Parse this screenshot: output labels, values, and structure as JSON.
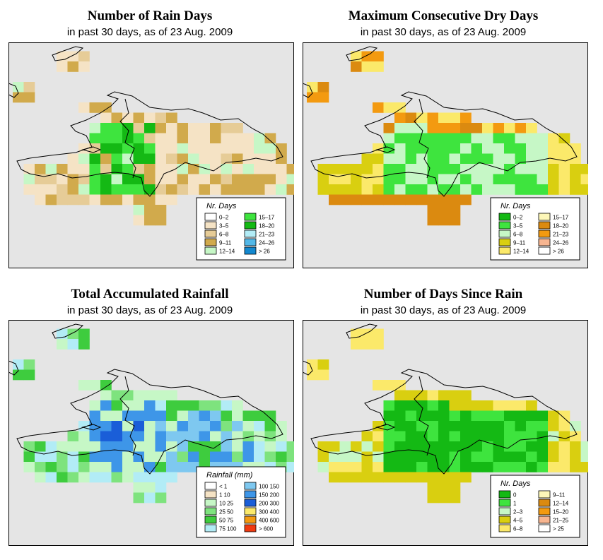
{
  "panels": [
    {
      "id": "rain_days",
      "title": "Number of Rain Days",
      "subtitle": "in past 30 days, as of  23 Aug. 2009",
      "legend": {
        "title": "Nr. Days",
        "items": [
          {
            "label": "0–2",
            "color": "#ffffff"
          },
          {
            "label": "3–5",
            "color": "#f5e3c5"
          },
          {
            "label": "6–8",
            "color": "#e6cc97"
          },
          {
            "label": "9–11",
            "color": "#d1aa4c"
          },
          {
            "label": "12–14",
            "color": "#c6f7c6"
          },
          {
            "label": "15–17",
            "color": "#3ee43e"
          },
          {
            "label": "18–20",
            "color": "#14b914"
          },
          {
            "label": "21–23",
            "color": "#b2ecf6"
          },
          {
            "label": "24–26",
            "color": "#52b8e8"
          },
          {
            "label": "> 26",
            "color": "#1388cf"
          }
        ]
      },
      "grid_values": [
        "........................",
        ".......11...............",
        "........................",
        "........................",
        "........................",
        "........................",
        "........................",
        "........................",
        "........................",
        "........................",
        "........................",
        "........................",
        "........................",
        "........................",
        "........................"
      ]
    },
    {
      "id": "max_dry",
      "title": "Maximum Consecutive Dry Days",
      "subtitle": "in past 30 days, as of  23 Aug. 2009",
      "legend": {
        "title": "Nr. Days",
        "items": [
          {
            "label": "0–2",
            "color": "#14b914"
          },
          {
            "label": "3–5",
            "color": "#3ee43e"
          },
          {
            "label": "6–8",
            "color": "#c6f7c6"
          },
          {
            "label": "9–11",
            "color": "#d9cf10"
          },
          {
            "label": "12–14",
            "color": "#fbe96a"
          },
          {
            "label": "15–17",
            "color": "#fdf7b8"
          },
          {
            "label": "18–20",
            "color": "#db8a10"
          },
          {
            "label": "21–23",
            "color": "#f39a10"
          },
          {
            "label": "24–26",
            "color": "#f7b590"
          },
          {
            "label": "> 26",
            "color": "#ffffff"
          }
        ]
      }
    },
    {
      "id": "total_rain",
      "title": "Total Accumulated Rainfall",
      "subtitle": "in past 30 days, as of  23 Aug. 2009",
      "legend": {
        "title": "Rainfall (mm)",
        "items": [
          {
            "label": "< 1",
            "color": "#ffffff"
          },
          {
            "label": "1   10",
            "color": "#f5e3c5"
          },
          {
            "label": "10   25",
            "color": "#c6f7c6"
          },
          {
            "label": "25   50",
            "color": "#7ee37e"
          },
          {
            "label": "50   75",
            "color": "#3ecc3e"
          },
          {
            "label": "75   100",
            "color": "#b2ecf6"
          },
          {
            "label": "100   150",
            "color": "#7ec8f0"
          },
          {
            "label": "150   200",
            "color": "#3e96e8"
          },
          {
            "label": "200   300",
            "color": "#1a5ed8"
          },
          {
            "label": "300   400",
            "color": "#fbe96a"
          },
          {
            "label": "400   600",
            "color": "#f39a10"
          },
          {
            "label": "> 600",
            "color": "#f03a10"
          }
        ]
      }
    },
    {
      "id": "days_since",
      "title": "Number of Days Since Rain",
      "subtitle": "in past 30 days, as of  23 Aug. 2009",
      "legend": {
        "title": "Nr. Days",
        "items": [
          {
            "label": "0",
            "color": "#14b914"
          },
          {
            "label": "1",
            "color": "#3ee43e"
          },
          {
            "label": "2–3",
            "color": "#c6f7c6"
          },
          {
            "label": "4–5",
            "color": "#d9cf10"
          },
          {
            "label": "6–8",
            "color": "#fbe96a"
          },
          {
            "label": "9–11",
            "color": "#fdf7b8"
          },
          {
            "label": "12–14",
            "color": "#db8a10"
          },
          {
            "label": "15–20",
            "color": "#f39a10"
          },
          {
            "label": "21–25",
            "color": "#f7b590"
          },
          {
            "label": "> 25",
            "color": "#ffffff"
          }
        ]
      }
    }
  ],
  "colors": {
    "map_background": "#e5e5e5",
    "outline": "#000000"
  }
}
